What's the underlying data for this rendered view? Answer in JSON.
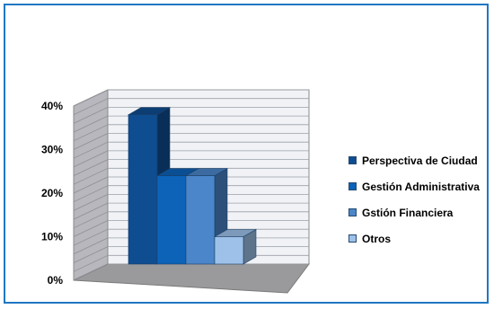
{
  "chart_data": {
    "type": "bar",
    "categories": [
      "Perspectiva de Ciudad",
      "Gestión Administrativa",
      "Gstión Financiera",
      "Otros"
    ],
    "values": [
      38,
      24,
      24,
      10
    ],
    "ylim": [
      0,
      40
    ],
    "yticks": [
      "0%",
      "10%",
      "20%",
      "30%",
      "40%"
    ],
    "legend": [
      {
        "label": "Perspectiva de Ciudad",
        "color": "#0f4d91"
      },
      {
        "label": "Gestión Administrativa",
        "color": "#0c63b8"
      },
      {
        "label": "Gstión Financiera",
        "color": "#4a86c9"
      },
      {
        "label": "Otros",
        "color": "#9dc1e8"
      }
    ],
    "legend_position": "right",
    "grid": true,
    "three_d": true
  }
}
